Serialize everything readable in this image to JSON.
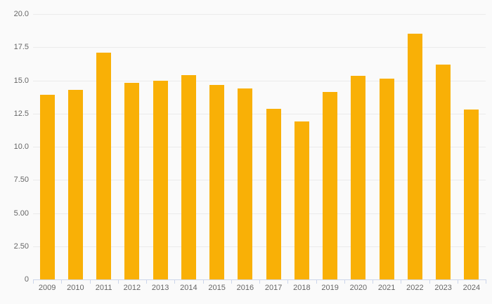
{
  "chart_data": {
    "type": "bar",
    "title": "",
    "subtitle": "",
    "xlabel": "",
    "ylabel": "",
    "legend": false,
    "grid": true,
    "categories": [
      "2009",
      "2010",
      "2011",
      "2012",
      "2013",
      "2014",
      "2015",
      "2016",
      "2017",
      "2018",
      "2019",
      "2020",
      "2021",
      "2022",
      "2023",
      "2024"
    ],
    "values": [
      13.9,
      14.3,
      17.1,
      14.8,
      15.0,
      15.4,
      14.65,
      14.4,
      12.85,
      11.9,
      14.15,
      15.35,
      15.15,
      18.5,
      16.2,
      12.8
    ],
    "ylim": [
      0,
      20
    ],
    "yticks": [
      {
        "value": 20,
        "label": "20.0"
      },
      {
        "value": 17.5,
        "label": "17.5"
      },
      {
        "value": 15,
        "label": "15.0"
      },
      {
        "value": 12.5,
        "label": "12.5"
      },
      {
        "value": 10,
        "label": "10.0"
      },
      {
        "value": 7.5,
        "label": "7.50"
      },
      {
        "value": 5,
        "label": "5.00"
      },
      {
        "value": 2.5,
        "label": "2.50"
      },
      {
        "value": 0,
        "label": "0"
      }
    ],
    "colors": {
      "bar": "#f9b006",
      "axis_line": "#ccd6eb",
      "gridline": "#ebebeb",
      "label_text": "#666666",
      "background": "#fafafa"
    }
  }
}
